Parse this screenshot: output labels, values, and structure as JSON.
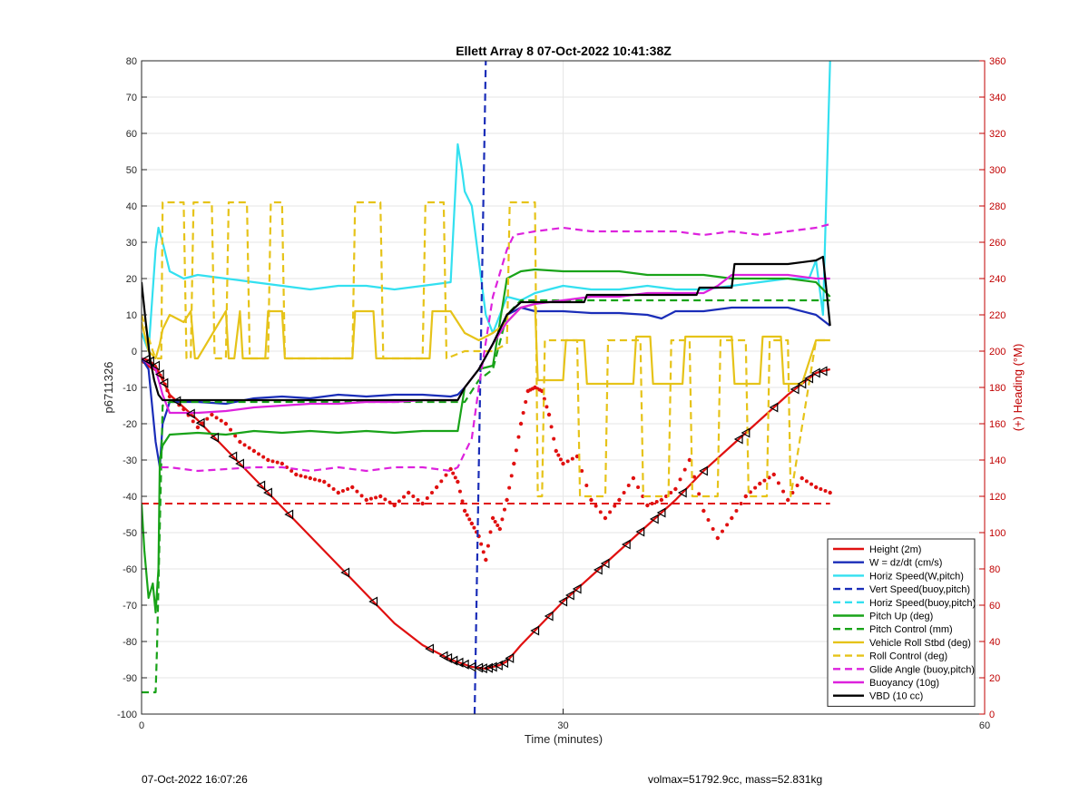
{
  "footer": {
    "left": "07-Oct-2022 16:07:26",
    "right": "volmax=51792.9cc, mass=52.831kg"
  },
  "chart_data": {
    "type": "line",
    "title": "Ellett Array 8 07-Oct-2022 10:41:38Z",
    "xlabel": "Time (minutes)",
    "ylabel": "p6711326",
    "y2label": "(+) Heading (°M)",
    "xlim": [
      0,
      60
    ],
    "ylim": [
      -100,
      80
    ],
    "y2lim": [
      0,
      360
    ],
    "xticks": [
      0,
      30,
      60
    ],
    "yticks": [
      -100,
      -90,
      -80,
      -70,
      -60,
      -50,
      -40,
      -30,
      -20,
      -10,
      0,
      10,
      20,
      30,
      40,
      50,
      60,
      70,
      80
    ],
    "y2ticks": [
      0,
      20,
      40,
      60,
      80,
      100,
      120,
      140,
      160,
      180,
      200,
      220,
      240,
      260,
      280,
      300,
      320,
      340,
      360
    ],
    "grid": true,
    "legend_position": "bottom-right",
    "series": [
      {
        "name": "Height (2m)",
        "color": "#e01010",
        "style": "solid",
        "axis": "left",
        "x": [
          0,
          0.5,
          1,
          1.5,
          2,
          4,
          6,
          8,
          10,
          12,
          14,
          16,
          18,
          20,
          22,
          23.5,
          24.5,
          25,
          25.5,
          26,
          27,
          28,
          30,
          32,
          34,
          36,
          38,
          40,
          42,
          44,
          46,
          48,
          49
        ],
        "y": [
          -2,
          -2.5,
          -4,
          -8,
          -12,
          -19,
          -27,
          -35,
          -43,
          -51,
          -59,
          -67,
          -75,
          -81,
          -85,
          -87,
          -87.5,
          -87,
          -86.5,
          -85.5,
          -81,
          -77,
          -69,
          -62,
          -55,
          -48,
          -41,
          -33,
          -26,
          -19,
          -12,
          -6,
          -5
        ]
      },
      {
        "name": "W = dz/dt (cm/s)",
        "color": "#1a2db8",
        "style": "solid",
        "axis": "left",
        "x": [
          0,
          0.5,
          1,
          1.3,
          1.5,
          2,
          4,
          6,
          8,
          10,
          12,
          14,
          16,
          18,
          20,
          22,
          22.5,
          23,
          24,
          25,
          26,
          27,
          28,
          30,
          32,
          34,
          36,
          37,
          38,
          40,
          42,
          44,
          46,
          48,
          49
        ],
        "y": [
          -2,
          -5,
          -25,
          -32,
          -20,
          -14,
          -14,
          -14.5,
          -13,
          -12.5,
          -13,
          -12,
          -12.5,
          -12,
          -12,
          -12.5,
          -12,
          -10,
          -5,
          2,
          10,
          12,
          11,
          11,
          10.5,
          10.5,
          10,
          9,
          11,
          11,
          12,
          12,
          12,
          10,
          7
        ]
      },
      {
        "name": "Horiz Speed(W,pitch)",
        "color": "#33e0f0",
        "style": "solid",
        "axis": "left",
        "x": [
          0,
          0.5,
          1,
          1.2,
          1.5,
          2,
          3,
          4,
          6,
          8,
          10,
          12,
          14,
          16,
          18,
          20,
          22,
          22.5,
          22.8,
          23,
          23.5,
          24,
          24.5,
          25,
          26,
          27,
          28,
          30,
          32,
          34,
          36,
          38,
          40,
          42,
          44,
          46,
          47.5,
          48,
          48.5,
          49
        ],
        "y": [
          5,
          0,
          28,
          34,
          30,
          22,
          20,
          21,
          20,
          19,
          18,
          17,
          18,
          18,
          17,
          18,
          19,
          57,
          50,
          44,
          40,
          25,
          10,
          5,
          15,
          14,
          16,
          18,
          17,
          17,
          18,
          17,
          17,
          18,
          19,
          20,
          20,
          25,
          10,
          80
        ]
      },
      {
        "name": "Vert Speed(buoy,pitch)",
        "color": "#1a2db8",
        "style": "dashed",
        "axis": "left",
        "x": [
          23.7,
          24.1,
          24.5
        ],
        "y": [
          -100,
          -10,
          80
        ]
      },
      {
        "name": "Horiz Speed(buoy,pitch)",
        "color": "#33e0f0",
        "style": "dashed",
        "axis": "left",
        "x": [],
        "y": []
      },
      {
        "name": "Pitch Up (deg)",
        "color": "#19a319",
        "style": "solid",
        "axis": "left",
        "x": [
          0,
          0.2,
          0.5,
          0.8,
          1,
          1.2,
          1.3,
          1.5,
          2,
          4,
          6,
          8,
          10,
          12,
          14,
          16,
          18,
          20,
          22,
          22.5,
          23,
          24,
          25,
          26,
          27,
          28,
          30,
          32,
          34,
          36,
          38,
          40,
          42,
          44,
          46,
          48,
          49
        ],
        "y": [
          -42,
          -55,
          -68,
          -64,
          -72,
          -60,
          -30,
          -26,
          -23,
          -22.5,
          -23,
          -22,
          -22.5,
          -22,
          -22.5,
          -22,
          -22.5,
          -22,
          -22,
          -22,
          -10,
          -5,
          -4,
          20,
          22,
          22.5,
          22,
          22,
          22,
          21,
          21,
          21,
          20,
          20,
          20,
          19,
          15
        ]
      },
      {
        "name": "Pitch Control (mm)",
        "color": "#19a319",
        "style": "dashed",
        "axis": "left",
        "x": [
          0,
          1,
          1.1,
          1.5,
          2,
          5,
          10,
          15,
          20,
          22,
          23,
          24,
          25,
          26,
          27,
          28,
          35,
          40,
          45,
          48,
          49
        ],
        "y": [
          -94,
          -94,
          -82,
          -15,
          -14,
          -14,
          -14,
          -14,
          -14,
          -14,
          -14,
          -8,
          -5,
          10,
          14,
          14,
          14,
          14,
          14,
          14,
          14
        ]
      },
      {
        "name": "Vehicle Roll Stbd (deg)",
        "color": "#e6c319",
        "style": "solid",
        "axis": "left",
        "x": [
          0,
          0.5,
          1,
          1.3,
          1.5,
          2,
          3,
          3.5,
          3.8,
          4,
          6,
          6.2,
          6.6,
          7,
          7.2,
          8.8,
          9,
          10,
          10.2,
          15,
          15.2,
          16.5,
          16.7,
          20.5,
          20.7,
          22,
          23,
          24,
          25,
          26,
          27,
          28,
          28.2,
          29,
          30,
          30.2,
          31.5,
          31.7,
          35,
          35.2,
          36.2,
          36.4,
          38.5,
          38.7,
          42,
          42.2,
          44,
          44.2,
          45.5,
          45.7,
          47,
          48,
          49
        ],
        "y": [
          8,
          0,
          -2,
          2,
          6,
          10,
          8,
          11,
          -2,
          -2,
          11,
          -2,
          -2,
          11,
          -2,
          -2,
          11,
          11,
          -2,
          -2,
          11,
          11,
          -2,
          -2,
          11,
          11,
          5,
          3,
          5,
          8,
          12,
          13,
          -8,
          -8,
          -8,
          3,
          3,
          -9,
          -9,
          4,
          4,
          -9,
          -9,
          4,
          4,
          -9,
          -9,
          4,
          4,
          -9,
          -9,
          3,
          3
        ]
      },
      {
        "name": "Roll Control (deg)",
        "color": "#e6c319",
        "style": "dashed",
        "axis": "left",
        "x": [
          0,
          0.8,
          1,
          1.4,
          1.5,
          2,
          3,
          3.2,
          3.5,
          3.7,
          5,
          5.2,
          6,
          6.2,
          7.5,
          7.7,
          9,
          9.2,
          10,
          10.2,
          15,
          15.2,
          17,
          17.2,
          20,
          20.2,
          21.5,
          21.7,
          23,
          25,
          26,
          26.2,
          28,
          28.2,
          28.5,
          28.7,
          31,
          31.2,
          33,
          33.2,
          35.5,
          35.7,
          37.5,
          37.7,
          39,
          39.2,
          41,
          41.2,
          43,
          43.2,
          44.5,
          44.7,
          46,
          46.2,
          48,
          49
        ],
        "y": [
          10,
          0,
          -2,
          -2,
          41,
          41,
          41,
          -2,
          -2,
          41,
          41,
          -2,
          -2,
          41,
          41,
          -2,
          -2,
          41,
          41,
          -2,
          -2,
          41,
          41,
          -2,
          -2,
          41,
          41,
          -2,
          0,
          0,
          2,
          41,
          41,
          -40,
          -40,
          3,
          3,
          -40,
          -40,
          3,
          3,
          -40,
          -40,
          3,
          3,
          -40,
          -40,
          3,
          3,
          -40,
          -40,
          3,
          3,
          -40,
          3,
          3
        ]
      },
      {
        "name": "Glide Angle (buoy,pitch)",
        "color": "#dd22dd",
        "style": "dashed",
        "axis": "left",
        "x": [
          1.4,
          2,
          4,
          6,
          8,
          10,
          12,
          14,
          16,
          18,
          20,
          22,
          22.5,
          23.5,
          24,
          25,
          26,
          26.5,
          28,
          30,
          32,
          34,
          36,
          38,
          40,
          42,
          44,
          46,
          48,
          49
        ],
        "y": [
          -32,
          -32,
          -33,
          -32.5,
          -32,
          -32,
          -33,
          -32,
          -33,
          -32,
          -32,
          -33,
          -32,
          -24,
          -10,
          15,
          28,
          32,
          33,
          34,
          33,
          33,
          33,
          33,
          32,
          33,
          32,
          33,
          34,
          35
        ]
      },
      {
        "name": "Buoyancy (10g)",
        "color": "#dd22dd",
        "style": "solid",
        "axis": "left",
        "x": [
          0,
          1,
          1.5,
          2,
          4,
          6,
          8,
          10,
          12,
          14,
          16,
          18,
          20,
          22,
          22.5,
          23,
          24,
          25,
          26,
          27,
          28,
          30,
          32,
          34,
          36,
          38,
          40,
          41,
          42,
          44,
          46,
          48,
          49
        ],
        "y": [
          -2,
          -5,
          -12,
          -17,
          -17,
          -16.5,
          -15.5,
          -15,
          -14.5,
          -14.5,
          -14,
          -14,
          -13.5,
          -13.5,
          -13.5,
          -10,
          -5,
          2,
          8,
          12,
          13,
          14,
          15,
          15,
          16,
          16,
          16,
          18,
          21,
          21,
          21,
          20,
          20
        ]
      },
      {
        "name": "VBD (10 cc)",
        "color": "#000000",
        "style": "solid",
        "axis": "left",
        "x": [
          0,
          0.3,
          0.6,
          0.9,
          1.2,
          1.5,
          2,
          4,
          6,
          8,
          10,
          12,
          14,
          16,
          18,
          20,
          22,
          22.5,
          23,
          24,
          25,
          26,
          27,
          28,
          30,
          31.5,
          31.7,
          34,
          36,
          38,
          39.5,
          39.7,
          41,
          42,
          42.2,
          44,
          46,
          48,
          48.5,
          49
        ],
        "y": [
          19,
          8,
          -2,
          -8,
          -12,
          -13.5,
          -13.5,
          -13.5,
          -13.5,
          -13.5,
          -13.5,
          -13.5,
          -13.5,
          -13.5,
          -13.5,
          -13.5,
          -13.5,
          -13.5,
          -10,
          -5,
          2,
          10,
          13.5,
          13.5,
          13.5,
          13.5,
          15.5,
          15.5,
          15.5,
          15.5,
          15.5,
          17.5,
          17.5,
          17.5,
          24,
          24,
          24,
          25,
          26,
          7
        ]
      }
    ],
    "heading_series": {
      "name": "Heading",
      "color": "#e01010",
      "axis": "right",
      "style": "dotted",
      "x": [
        0,
        0.5,
        1,
        1.5,
        2,
        3,
        4,
        5,
        6,
        7,
        8,
        9,
        10,
        11,
        12,
        13,
        14,
        15,
        16,
        17,
        18,
        19,
        20,
        21,
        22,
        22.5,
        23,
        23.5,
        24,
        24.5,
        25,
        25.5,
        26,
        26.5,
        27,
        27.5,
        28,
        28.5,
        29,
        29.5,
        30,
        31,
        32,
        33,
        34,
        35,
        36,
        37,
        38,
        39,
        40,
        41,
        42,
        43,
        44,
        45,
        46,
        47,
        48,
        49
      ],
      "y": [
        195,
        192,
        190,
        185,
        175,
        168,
        158,
        165,
        160,
        150,
        145,
        140,
        138,
        132,
        130,
        128,
        122,
        125,
        118,
        120,
        115,
        122,
        116,
        125,
        135,
        128,
        112,
        105,
        98,
        85,
        108,
        102,
        118,
        138,
        160,
        178,
        180,
        178,
        165,
        145,
        138,
        142,
        118,
        108,
        118,
        130,
        115,
        118,
        124,
        140,
        112,
        97,
        108,
        120,
        127,
        132,
        118,
        130,
        125,
        122
      ]
    },
    "reference_lines": [
      {
        "color": "#e01010",
        "style": "dashed",
        "axis": "right",
        "y": 116,
        "x": [
          0,
          49
        ]
      }
    ],
    "markers": {
      "shape": "triangle-left",
      "color": "#000000",
      "on_series": "Height (2m)",
      "x": [
        0.3,
        0.6,
        1,
        1.3,
        1.6,
        2.5,
        3.5,
        4.2,
        5.2,
        6.5,
        7,
        8.5,
        9,
        10.5,
        14.5,
        16.5,
        20.5,
        21.5,
        21.8,
        22.2,
        22.6,
        23,
        23.5,
        24,
        24.3,
        24.7,
        25,
        25.4,
        25.8,
        26.2,
        28,
        29,
        30,
        30.5,
        31,
        32.5,
        33,
        34.5,
        35.5,
        36.5,
        37,
        38.5,
        40,
        42.5,
        43,
        45,
        46.5,
        47,
        47.5,
        48,
        48.5
      ]
    }
  }
}
